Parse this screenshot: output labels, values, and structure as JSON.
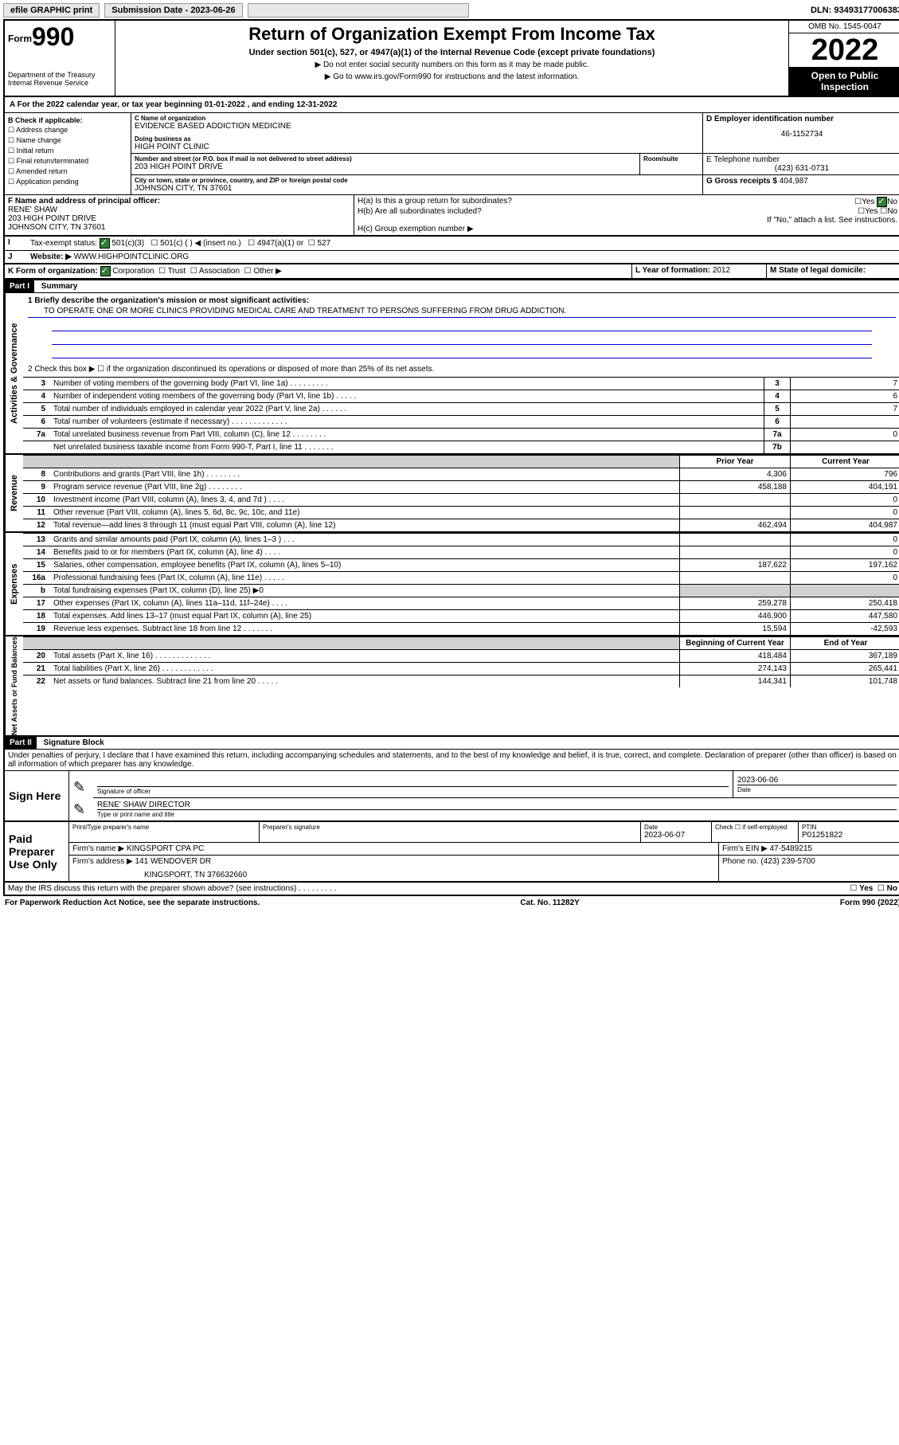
{
  "topbar": {
    "efile": "efile GRAPHIC print",
    "submission_label": "Submission Date - 2023-06-26",
    "dln": "DLN: 93493177006383"
  },
  "header": {
    "form_prefix": "Form",
    "form_number": "990",
    "dept": "Department of the Treasury\nInternal Revenue Service",
    "title": "Return of Organization Exempt From Income Tax",
    "subtitle": "Under section 501(c), 527, or 4947(a)(1) of the Internal Revenue Code (except private foundations)",
    "warn": "▶ Do not enter social security numbers on this form as it may be made public.",
    "goto": "▶ Go to www.irs.gov/Form990 for instructions and the latest information.",
    "omb": "OMB No. 1545-0047",
    "year": "2022",
    "open": "Open to Public Inspection"
  },
  "sectionA": {
    "text": "A For the 2022 calendar year, or tax year beginning 01-01-2022    , and ending 12-31-2022"
  },
  "B": {
    "label": "B Check if applicable:",
    "opts": [
      "Address change",
      "Name change",
      "Initial return",
      "Final return/terminated",
      "Amended return",
      "Application pending"
    ]
  },
  "C": {
    "name_lbl": "C Name of organization",
    "name": "EVIDENCE BASED ADDICTION MEDICINE",
    "dba_lbl": "Doing business as",
    "dba": "HIGH POINT CLINIC",
    "addr_lbl": "Number and street (or P.O. box if mail is not delivered to street address)",
    "addr": "203 HIGH POINT DRIVE",
    "room_lbl": "Room/suite",
    "city_lbl": "City or town, state or province, country, and ZIP or foreign postal code",
    "city": "JOHNSON CITY, TN  37601"
  },
  "D": {
    "lbl": "D Employer identification number",
    "val": "46-1152734"
  },
  "E": {
    "lbl": "E Telephone number",
    "val": "(423) 631-0731"
  },
  "G": {
    "lbl": "G Gross receipts $",
    "val": "404,987"
  },
  "F": {
    "lbl": "F  Name and address of principal officer:",
    "name": "RENE' SHAW",
    "addr1": "203 HIGH POINT DRIVE",
    "addr2": "JOHNSON CITY, TN  37601"
  },
  "H": {
    "a": "H(a)  Is this a group return for subordinates?",
    "b": "H(b)  Are all subordinates included?",
    "note": "If \"No,\" attach a list. See instructions.",
    "c": "H(c)  Group exemption number ▶",
    "yes": "Yes",
    "no": "No"
  },
  "I": {
    "lbl": "Tax-exempt status:",
    "opts": [
      "501(c)(3)",
      "501(c) (  ) ◀ (insert no.)",
      "4947(a)(1) or",
      "527"
    ]
  },
  "J": {
    "lbl": "Website: ▶",
    "val": "WWW.HIGHPOINTCLINIC.ORG"
  },
  "K": {
    "lbl": "K Form of organization:",
    "opts": [
      "Corporation",
      "Trust",
      "Association",
      "Other ▶"
    ]
  },
  "L": {
    "lbl": "L Year of formation:",
    "val": "2012"
  },
  "M": {
    "lbl": "M State of legal domicile:",
    "val": ""
  },
  "part1": {
    "header": "Part I",
    "title": "Summary",
    "mission_lbl": "1  Briefly describe the organization's mission or most significant activities:",
    "mission": "TO OPERATE ONE OR MORE CLINICS PROVIDING MEDICAL CARE AND TREATMENT TO PERSONS SUFFERING FROM DRUG ADDICTION.",
    "line2": "2    Check this box ▶ ☐  if the organization discontinued its operations or disposed of more than 25% of its net assets.",
    "groups": {
      "activities": "Activities & Governance",
      "revenue": "Revenue",
      "expenses": "Expenses",
      "net": "Net Assets or Fund Balances"
    },
    "col_prior": "Prior Year",
    "col_current": "Current Year",
    "col_begin": "Beginning of Current Year",
    "col_end": "End of Year",
    "rows_top": [
      {
        "n": "3",
        "t": "Number of voting members of the governing body (Part VI, line 1a)   .    .    .    .    .    .    .    .    .",
        "box": "3",
        "v": "7"
      },
      {
        "n": "4",
        "t": "Number of independent voting members of the governing body (Part VI, line 1b)    .    .    .    .    .",
        "box": "4",
        "v": "6"
      },
      {
        "n": "5",
        "t": "Total number of individuals employed in calendar year 2022 (Part V, line 2a)     .    .    .    .    .    .",
        "box": "5",
        "v": "7"
      },
      {
        "n": "6",
        "t": "Total number of volunteers (estimate if necessary)   .    .    .    .    .    .    .    .    .    .    .    .    .",
        "box": "6",
        "v": ""
      },
      {
        "n": "7a",
        "t": "Total unrelated business revenue from Part VIII, column (C), line 12    .    .    .    .    .    .    .    .",
        "box": "7a",
        "v": "0"
      },
      {
        "n": "",
        "t": "Net unrelated business taxable income from Form 990-T, Part I, line 11    .    .    .    .    .    .    .",
        "box": "7b",
        "v": ""
      }
    ],
    "rows_rev": [
      {
        "n": "8",
        "t": "Contributions and grants (Part VIII, line 1h)    .    .    .    .    .    .    .    .",
        "p": "4,306",
        "c": "796"
      },
      {
        "n": "9",
        "t": "Program service revenue (Part VIII, line 2g)    .    .    .    .    .    .    .    .",
        "p": "458,188",
        "c": "404,191"
      },
      {
        "n": "10",
        "t": "Investment income (Part VIII, column (A), lines 3, 4, and 7d )    .    .    .    .",
        "p": "",
        "c": "0"
      },
      {
        "n": "11",
        "t": "Other revenue (Part VIII, column (A), lines 5, 6d, 8c, 9c, 10c, and 11e)",
        "p": "",
        "c": "0"
      },
      {
        "n": "12",
        "t": "Total revenue—add lines 8 through 11 (must equal Part VIII, column (A), line 12)",
        "p": "462,494",
        "c": "404,987"
      }
    ],
    "rows_exp": [
      {
        "n": "13",
        "t": "Grants and similar amounts paid (Part IX, column (A), lines 1–3 )    .    .    .",
        "p": "",
        "c": "0"
      },
      {
        "n": "14",
        "t": "Benefits paid to or for members (Part IX, column (A), line 4)    .    .    .    .",
        "p": "",
        "c": "0"
      },
      {
        "n": "15",
        "t": "Salaries, other compensation, employee benefits (Part IX, column (A), lines 5–10)",
        "p": "187,622",
        "c": "197,162"
      },
      {
        "n": "16a",
        "t": "Professional fundraising fees (Part IX, column (A), line 11e)    .    .    .    .    .",
        "p": "",
        "c": "0"
      },
      {
        "n": "b",
        "t": "Total fundraising expenses (Part IX, column (D), line 25) ▶0",
        "p": "GRAY",
        "c": "GRAY"
      },
      {
        "n": "17",
        "t": "Other expenses (Part IX, column (A), lines 11a–11d, 11f–24e)    .    .    .    .",
        "p": "259,278",
        "c": "250,418"
      },
      {
        "n": "18",
        "t": "Total expenses. Add lines 13–17 (must equal Part IX, column (A), line 25)",
        "p": "446,900",
        "c": "447,580"
      },
      {
        "n": "19",
        "t": "Revenue less expenses. Subtract line 18 from line 12    .    .    .    .    .    .    .",
        "p": "15,594",
        "c": "-42,593"
      }
    ],
    "rows_net": [
      {
        "n": "20",
        "t": "Total assets (Part X, line 16)    .    .    .    .    .    .    .    .    .    .    .    .    .",
        "p": "418,484",
        "c": "367,189"
      },
      {
        "n": "21",
        "t": "Total liabilities (Part X, line 26)     .    .    .    .    .    .    .    .    .    .    .    .",
        "p": "274,143",
        "c": "265,441"
      },
      {
        "n": "22",
        "t": "Net assets or fund balances. Subtract line 21 from line 20     .    .    .    .    .",
        "p": "144,341",
        "c": "101,748"
      }
    ]
  },
  "part2": {
    "header": "Part II",
    "title": "Signature Block",
    "perjury": "Under penalties of perjury, I declare that I have examined this return, including accompanying schedules and statements, and to the best of my knowledge and belief, it is true, correct, and complete. Declaration of preparer (other than officer) is based on all information of which preparer has any knowledge.",
    "sign_here": "Sign Here",
    "sig_officer": "Signature of officer",
    "sig_date": "2023-06-06",
    "date_lbl": "Date",
    "officer_name": "RENE' SHAW  DIRECTOR",
    "type_name": "Type or print name and title",
    "paid": "Paid Preparer Use Only",
    "prep_name_lbl": "Print/Type preparer's name",
    "prep_sig_lbl": "Preparer's signature",
    "prep_date_lbl": "Date",
    "prep_date": "2023-06-07",
    "self_emp": "Check ☐ if self-employed",
    "ptin_lbl": "PTIN",
    "ptin": "P01251822",
    "firm_name_lbl": "Firm's name    ▶",
    "firm_name": "KINGSPORT CPA PC",
    "firm_ein_lbl": "Firm's EIN ▶",
    "firm_ein": "47-5489215",
    "firm_addr_lbl": "Firm's address ▶",
    "firm_addr": "141 WENDOVER DR",
    "firm_city": "KINGSPORT, TN  376632660",
    "phone_lbl": "Phone no.",
    "phone": "(423) 239-5700",
    "discuss": "May the IRS discuss this return with the preparer shown above? (see instructions)    .    .    .    .    .    .    .    .    ."
  },
  "footer": {
    "paperwork": "For Paperwork Reduction Act Notice, see the separate instructions.",
    "cat": "Cat. No. 11282Y",
    "form": "Form 990 (2022)"
  }
}
